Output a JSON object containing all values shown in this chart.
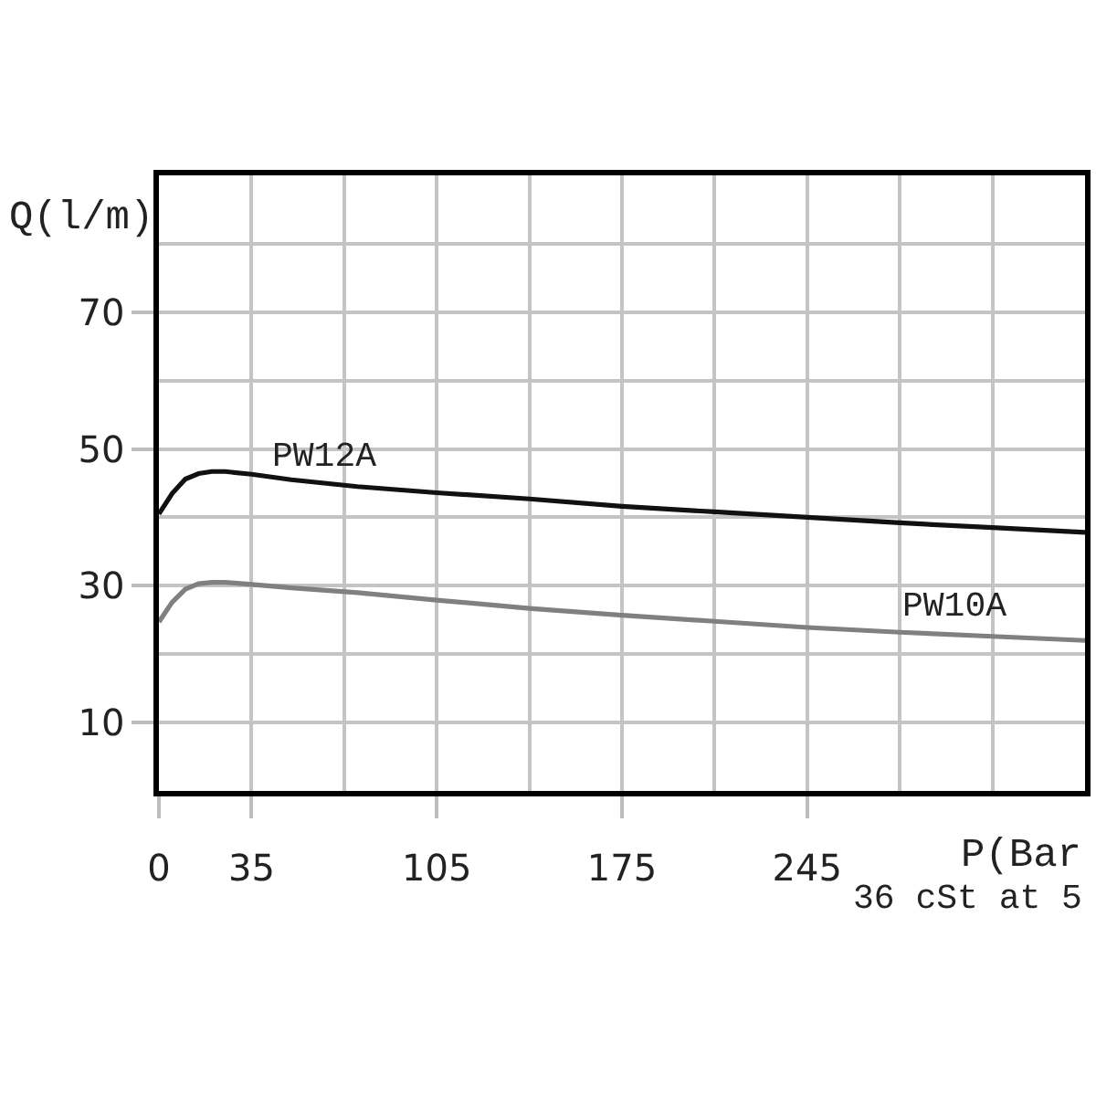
{
  "chart_data": {
    "type": "line",
    "xlabel": "P(Bar",
    "ylabel": "Q(l/m)",
    "annotations": [
      "36 cSt at 5"
    ],
    "x": [
      0,
      5,
      10,
      15,
      20,
      25,
      35,
      50,
      75,
      105,
      140,
      175,
      210,
      245,
      280,
      315,
      350
    ],
    "series": [
      {
        "name": "PW12A",
        "color": "#111111",
        "values": [
          40.5,
          43.5,
          45.6,
          46.4,
          46.7,
          46.7,
          46.3,
          45.5,
          44.5,
          43.6,
          42.7,
          41.6,
          40.8,
          40.0,
          39.2,
          38.5,
          37.8
        ]
      },
      {
        "name": "PW10A",
        "color": "#808080",
        "values": [
          24.7,
          27.6,
          29.5,
          30.3,
          30.5,
          30.5,
          30.2,
          29.7,
          29.0,
          27.9,
          26.7,
          25.7,
          24.8,
          23.9,
          23.2,
          22.6,
          22.0
        ]
      }
    ],
    "xlim": [
      0,
      350
    ],
    "ylim": [
      0,
      90
    ],
    "xticks": [
      {
        "value": 0,
        "label": "0"
      },
      35,
      {
        "value": 70,
        "label": null
      },
      105,
      {
        "value": 140,
        "label": null
      },
      175,
      {
        "value": 210,
        "label": null
      },
      245,
      {
        "value": 280,
        "label": null
      },
      {
        "value": 315,
        "label": null
      }
    ],
    "yticks": [
      10,
      {
        "value": 20,
        "label": null
      },
      30,
      {
        "value": 40,
        "label": null
      },
      50,
      {
        "value": 60,
        "label": null
      },
      70,
      {
        "value": 80,
        "label": null
      }
    ],
    "grid": true,
    "line_style": "solid"
  }
}
